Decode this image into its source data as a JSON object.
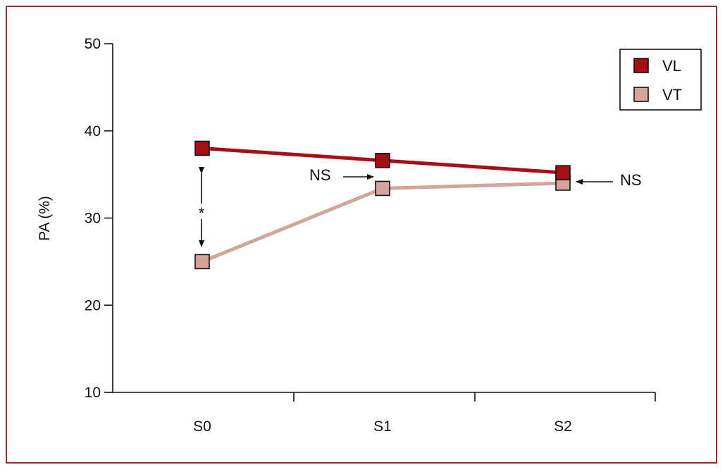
{
  "chart_data": {
    "type": "line",
    "categories": [
      "S0",
      "S1",
      "S2"
    ],
    "ylabel": "PA (%)",
    "xlabel": "",
    "ylim": [
      10,
      50
    ],
    "yticks": [
      10,
      20,
      30,
      40,
      50
    ],
    "grid": false,
    "legend_position": "top-right",
    "series": [
      {
        "name": "VL",
        "values": [
          38.0,
          36.6,
          35.2
        ],
        "color": "#a50f15"
      },
      {
        "name": "VT",
        "values": [
          25.0,
          33.4,
          34.0
        ],
        "color": "#d4a49a"
      }
    ],
    "annotations": {
      "star": "*",
      "ns_s1": "NS",
      "ns_s2": "NS"
    }
  }
}
